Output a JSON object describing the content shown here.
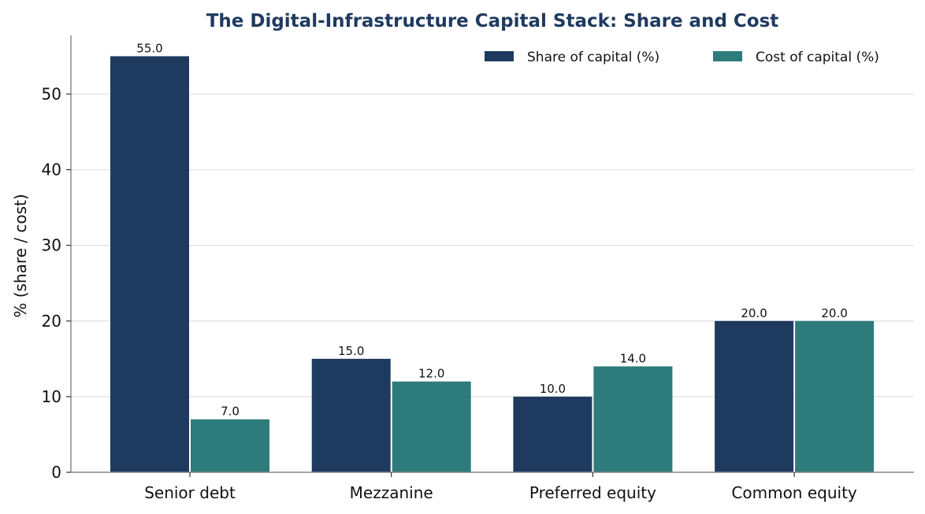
{
  "chart_data": {
    "type": "bar",
    "title": "The Digital-Infrastructure Capital Stack: Share and Cost",
    "xlabel": "",
    "ylabel": "% (share / cost)",
    "categories": [
      "Senior debt",
      "Mezzanine",
      "Preferred equity",
      "Common equity"
    ],
    "series": [
      {
        "name": "Share of capital (%)",
        "values": [
          55.0,
          15.0,
          10.0,
          20.0
        ],
        "color": "#1f3a5f"
      },
      {
        "name": "Cost of capital (%)",
        "values": [
          7.0,
          12.0,
          14.0,
          20.0
        ],
        "color": "#2e7b7b"
      }
    ],
    "data_labels": [
      [
        "55.0",
        "15.0",
        "10.0",
        "20.0"
      ],
      [
        "7.0",
        "12.0",
        "14.0",
        "20.0"
      ]
    ],
    "ylim": [
      0,
      57.75
    ],
    "yticks": [
      0,
      10,
      20,
      30,
      40,
      50
    ],
    "ytick_labels": [
      "0",
      "10",
      "20",
      "30",
      "40",
      "50"
    ],
    "grid": "horizontal",
    "legend_position": "top-right",
    "title_color": "#1f3a5f",
    "grid_color": "#e6e6e6",
    "axis_color": "#888888"
  }
}
